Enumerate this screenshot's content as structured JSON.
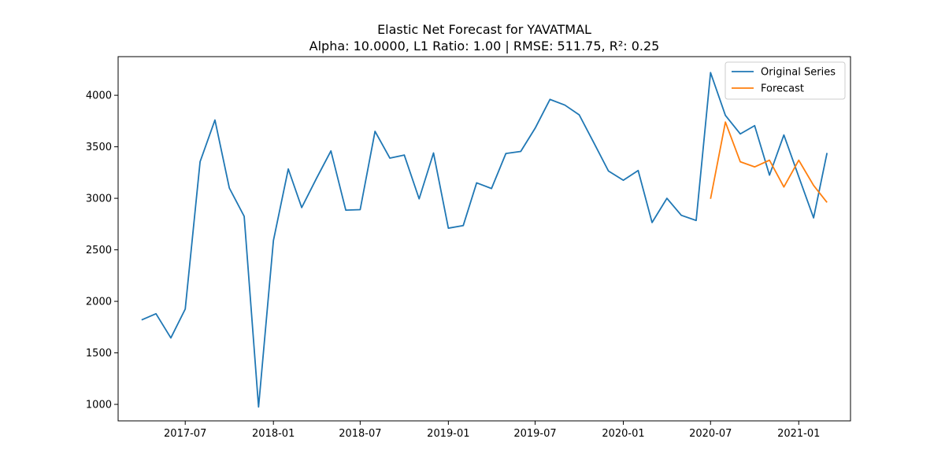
{
  "chart_data": {
    "type": "line",
    "title": "Elastic Net Forecast for YAVATMAL",
    "subtitle": "Alpha: 10.0000, L1 Ratio: 1.00 | RMSE: 511.75, R²: 0.25",
    "xlabel": "",
    "ylabel": "",
    "xlim": [
      "2017-02-11",
      "2021-04-19"
    ],
    "ylim": [
      840,
      4375
    ],
    "x_ticks": [
      "2017-07",
      "2018-01",
      "2018-07",
      "2019-01",
      "2019-07",
      "2020-01",
      "2020-07",
      "2021-01"
    ],
    "y_ticks": [
      1000,
      1500,
      2000,
      2500,
      3000,
      3500,
      4000
    ],
    "grid": false,
    "legend_position": "top-right",
    "series": [
      {
        "name": "Original Series",
        "color": "#1f77b4",
        "x": [
          "2017-04",
          "2017-05",
          "2017-06",
          "2017-07",
          "2017-08",
          "2017-09",
          "2017-10",
          "2017-11",
          "2017-12",
          "2018-01",
          "2018-02",
          "2018-03",
          "2018-04",
          "2018-05",
          "2018-06",
          "2018-07",
          "2018-08",
          "2018-09",
          "2018-10",
          "2018-11",
          "2018-12",
          "2019-01",
          "2019-02",
          "2019-03",
          "2019-04",
          "2019-05",
          "2019-06",
          "2019-07",
          "2019-08",
          "2019-09",
          "2019-10",
          "2019-11",
          "2019-12",
          "2020-01",
          "2020-02",
          "2020-03",
          "2020-04",
          "2020-05",
          "2020-06",
          "2020-07",
          "2020-08",
          "2020-09",
          "2020-10",
          "2020-11",
          "2020-12",
          "2021-01",
          "2021-02",
          "2021-03"
        ],
        "values": [
          1820,
          1880,
          1645,
          1925,
          3355,
          3760,
          3100,
          2825,
          975,
          2590,
          3285,
          2910,
          3195,
          3460,
          2885,
          2890,
          3650,
          3390,
          3420,
          2995,
          3440,
          2710,
          2735,
          3150,
          3095,
          3435,
          3455,
          3680,
          3960,
          3905,
          3810,
          3535,
          3265,
          3175,
          3270,
          2765,
          3000,
          2835,
          2785,
          4220,
          3805,
          3625,
          3705,
          3225,
          3615,
          3210,
          2810,
          3440
        ]
      },
      {
        "name": "Forecast",
        "color": "#ff7f0e",
        "x": [
          "2020-07",
          "2020-08",
          "2020-09",
          "2020-10",
          "2020-11",
          "2020-12",
          "2021-01",
          "2021-02",
          "2021-03"
        ],
        "values": [
          2995,
          3740,
          3355,
          3305,
          3370,
          3110,
          3370,
          3125,
          2960
        ]
      }
    ]
  }
}
